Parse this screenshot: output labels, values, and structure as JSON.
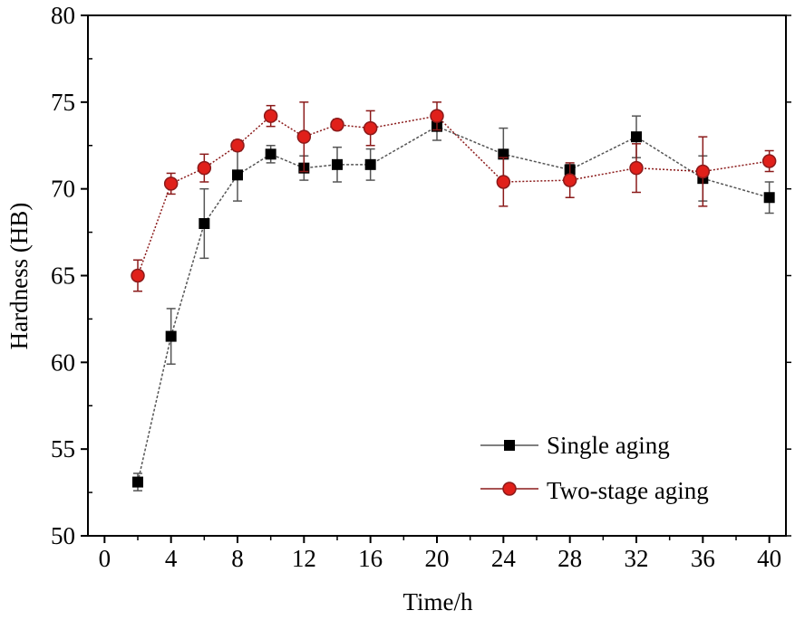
{
  "chart_data": {
    "type": "line",
    "xlabel": "Time/h",
    "ylabel": "Hardness (HB)",
    "xlim": [
      -1,
      41
    ],
    "ylim": [
      50,
      80
    ],
    "x_ticks": [
      0,
      4,
      8,
      12,
      16,
      20,
      24,
      28,
      32,
      36,
      40
    ],
    "y_ticks": [
      50,
      55,
      60,
      65,
      70,
      75,
      80
    ],
    "x_tick_labels": [
      "0",
      "4",
      "8",
      "12",
      "16",
      "20",
      "24",
      "28",
      "32",
      "36",
      "40"
    ],
    "y_tick_labels": [
      "50",
      "55",
      "60",
      "65",
      "70",
      "75",
      "80"
    ],
    "legend_position": "bottom-right",
    "series": [
      {
        "name": "Single aging",
        "marker": "square",
        "color": "#000000",
        "line_color": "#555555",
        "x": [
          2,
          4,
          6,
          8,
          10,
          12,
          14,
          16,
          20,
          24,
          28,
          32,
          36,
          40
        ],
        "y": [
          53.1,
          61.5,
          68.0,
          70.8,
          72.0,
          71.2,
          71.4,
          71.4,
          73.6,
          72.0,
          71.1,
          73.0,
          70.6,
          69.5
        ],
        "err": [
          0.5,
          1.6,
          2.0,
          1.5,
          0.5,
          0.7,
          1.0,
          0.9,
          0.8,
          1.5,
          0.3,
          1.2,
          1.3,
          0.9
        ]
      },
      {
        "name": "Two-stage aging",
        "marker": "circle",
        "color": "#e0201a",
        "line_color": "#8b1a1a",
        "x": [
          2,
          4,
          6,
          8,
          10,
          12,
          14,
          16,
          20,
          24,
          28,
          32,
          36,
          40
        ],
        "y": [
          65.0,
          70.3,
          71.2,
          72.5,
          74.2,
          73.0,
          73.7,
          73.5,
          74.2,
          70.4,
          70.5,
          71.2,
          71.0,
          71.6
        ],
        "err": [
          0.9,
          0.6,
          0.8,
          0.3,
          0.6,
          2.0,
          0.3,
          1.0,
          0.8,
          1.4,
          1.0,
          1.4,
          2.0,
          0.6
        ]
      }
    ]
  }
}
